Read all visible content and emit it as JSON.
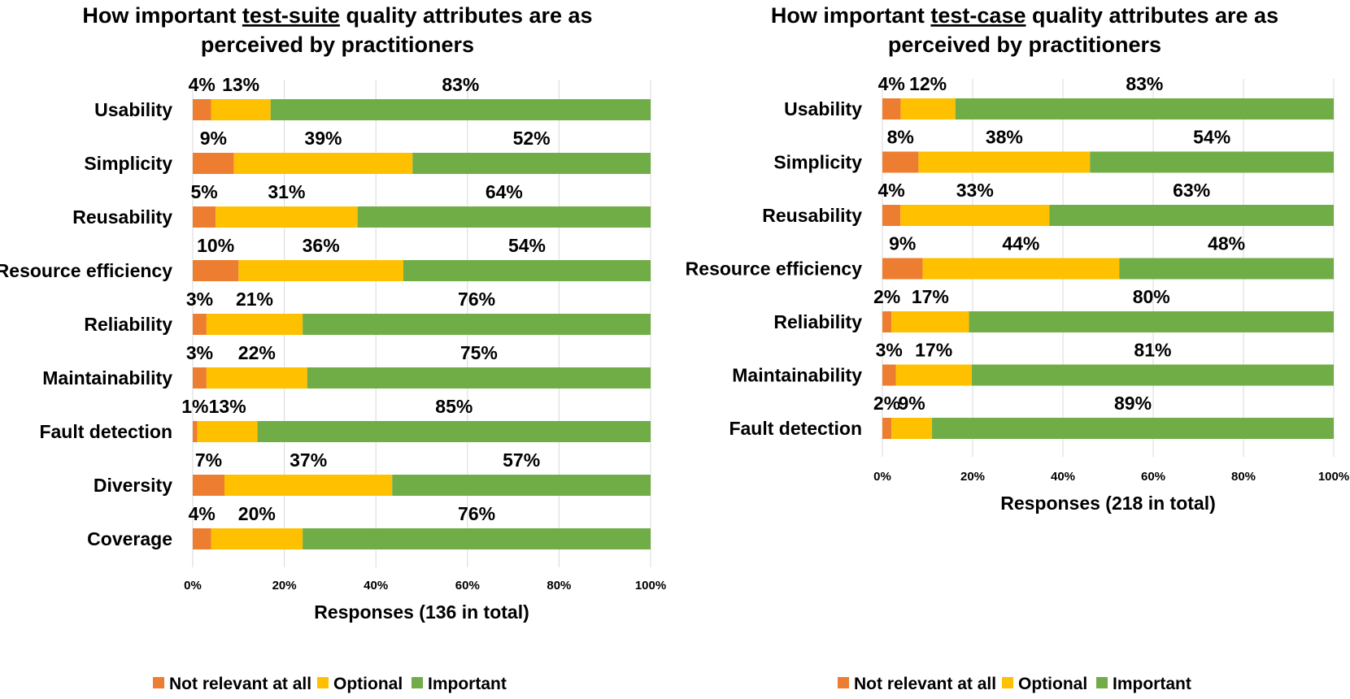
{
  "colors": {
    "not_relevant": "#ed7d31",
    "optional": "#ffc000",
    "important": "#70ad47"
  },
  "chart_data": [
    {
      "type": "bar",
      "orientation": "horizontal",
      "stacked": "percent",
      "title_parts": [
        "How important ",
        "test-suite",
        " quality attributes are as"
      ],
      "title_line2": "perceived by practitioners",
      "xlabel": "Responses (136 in total)",
      "xlim": [
        0,
        100
      ],
      "x_ticks": [
        "0%",
        "20%",
        "40%",
        "60%",
        "80%",
        "100%"
      ],
      "grid": true,
      "legend_position": "bottom",
      "categories": [
        "Usability",
        "Simplicity",
        "Reusability",
        "Resource efficiency",
        "Reliability",
        "Maintainability",
        "Fault detection",
        "Diversity",
        "Coverage"
      ],
      "series": [
        {
          "name": "Not relevant at all",
          "key": "not_relevant",
          "values": [
            4,
            9,
            5,
            10,
            3,
            3,
            1,
            7,
            4
          ],
          "labels": [
            "4%",
            "9%",
            "5%",
            "10%",
            "3%",
            "3%",
            "1%",
            "7%",
            "4%"
          ]
        },
        {
          "name": "Optional",
          "key": "optional",
          "values": [
            13,
            39,
            31,
            36,
            21,
            22,
            13,
            37,
            20
          ],
          "labels": [
            "13%",
            "39%",
            "31%",
            "36%",
            "21%",
            "22%",
            "13%",
            "37%",
            "20%"
          ]
        },
        {
          "name": "Important",
          "key": "important",
          "values": [
            83,
            52,
            64,
            54,
            76,
            75,
            85,
            57,
            76
          ],
          "labels": [
            "83%",
            "52%",
            "64%",
            "54%",
            "76%",
            "75%",
            "85%",
            "57%",
            "76%"
          ]
        }
      ]
    },
    {
      "type": "bar",
      "orientation": "horizontal",
      "stacked": "percent",
      "title_parts": [
        "How important ",
        "test-case",
        " quality attributes are as"
      ],
      "title_line2": "perceived by practitioners",
      "xlabel": "Responses (218 in total)",
      "xlim": [
        0,
        100
      ],
      "x_ticks": [
        "0%",
        "20%",
        "40%",
        "60%",
        "80%",
        "100%"
      ],
      "grid": true,
      "legend_position": "bottom",
      "categories": [
        "Usability",
        "Simplicity",
        "Reusability",
        "Resource efficiency",
        "Reliability",
        "Maintainability",
        "Fault detection"
      ],
      "series": [
        {
          "name": "Not relevant at all",
          "key": "not_relevant",
          "values": [
            4,
            8,
            4,
            9,
            2,
            3,
            2
          ],
          "labels": [
            "4%",
            "8%",
            "4%",
            "9%",
            "2%",
            "3%",
            "2%"
          ]
        },
        {
          "name": "Optional",
          "key": "optional",
          "values": [
            12,
            38,
            33,
            44,
            17,
            17,
            9
          ],
          "labels": [
            "12%",
            "38%",
            "33%",
            "44%",
            "17%",
            "17%",
            "9%"
          ]
        },
        {
          "name": "Important",
          "key": "important",
          "values": [
            83,
            54,
            63,
            48,
            80,
            81,
            89
          ],
          "labels": [
            "83%",
            "54%",
            "63%",
            "48%",
            "80%",
            "81%",
            "89%"
          ]
        }
      ]
    }
  ]
}
